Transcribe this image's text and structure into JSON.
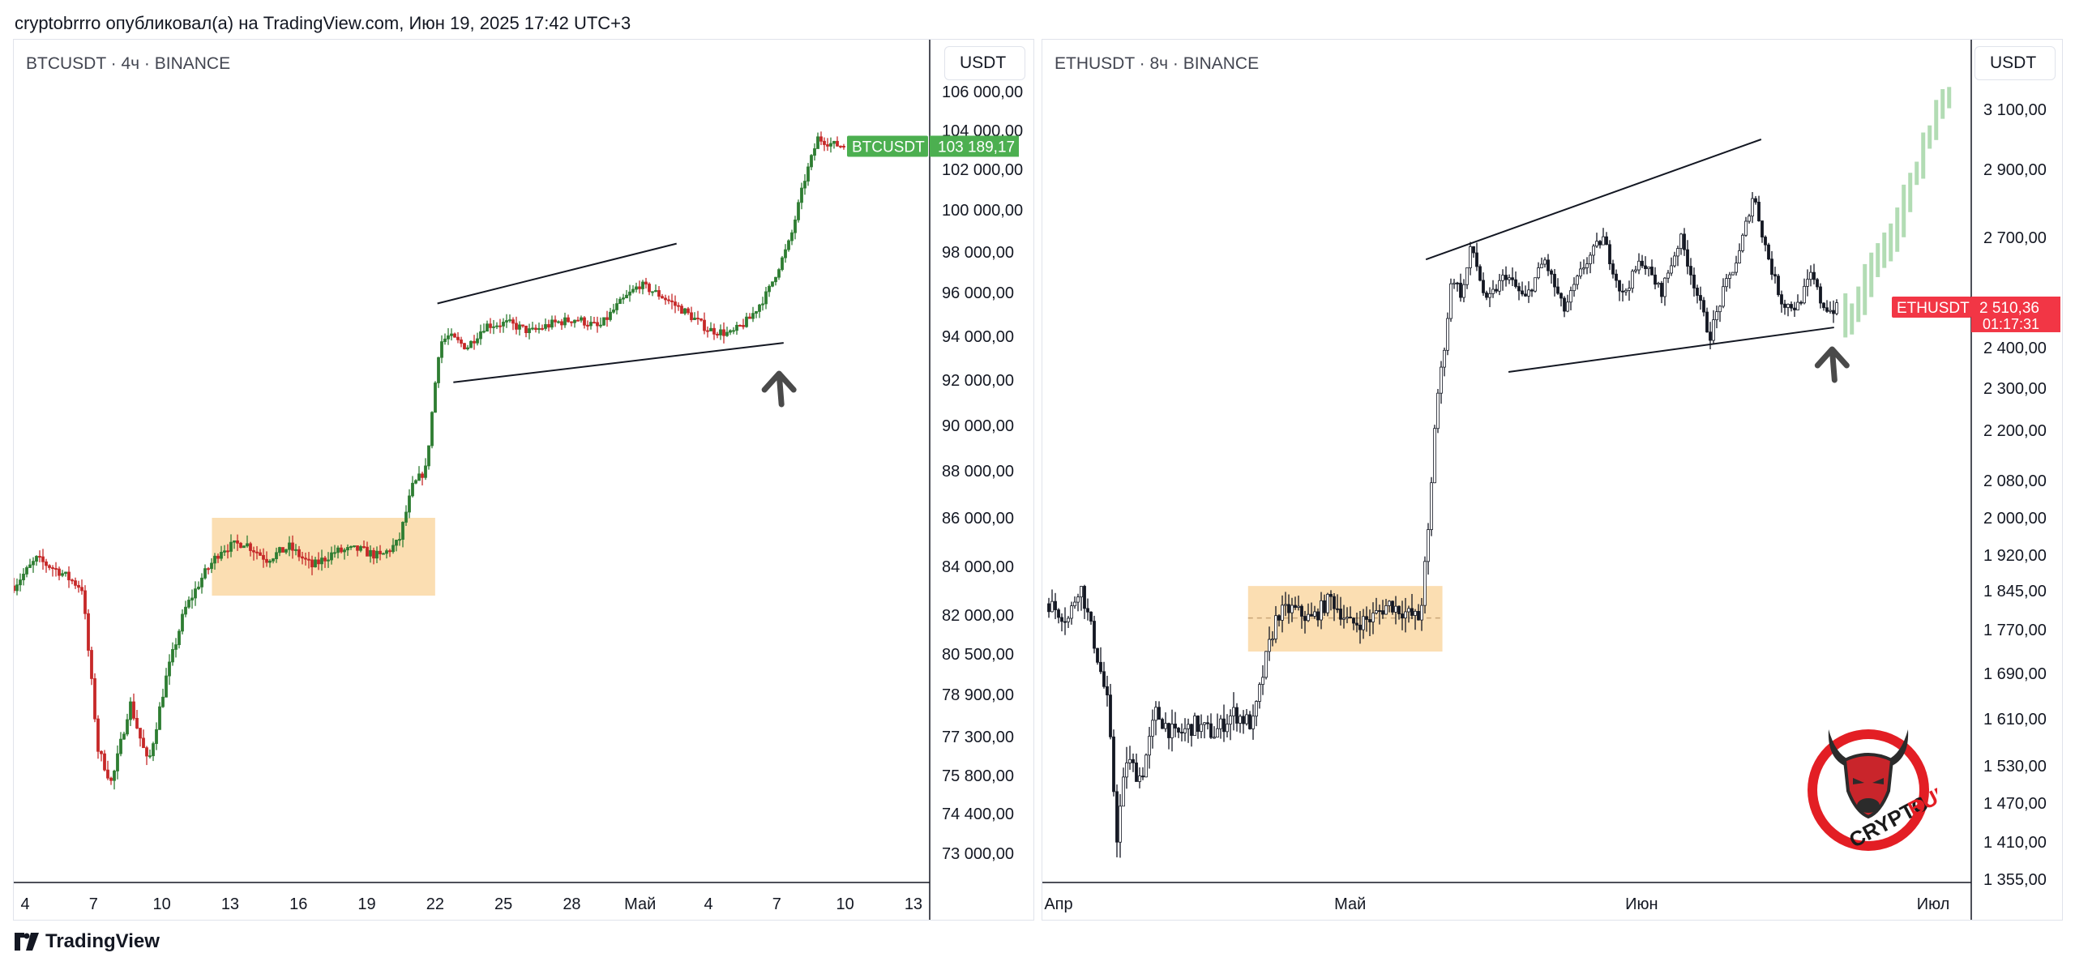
{
  "header": {
    "text": "cryptobrrro опубликовал(а) на TradingView.com, Июн 19, 2025 17:42 UTC+3"
  },
  "footer": {
    "brand": "TradingView"
  },
  "logo": {
    "line1": "CRYPTO",
    "line2": "BULL",
    "color": "#e31e24"
  },
  "colors": {
    "up": "#26a69a",
    "btc_candle_up": "#2e7d32",
    "btc_candle_down": "#c62828",
    "range_box": "#fbdcae",
    "btc_label": "#4caf50",
    "eth_label": "#f23645",
    "projection": "#a5d6a7"
  },
  "chart_data": [
    {
      "type": "candlestick",
      "title": "BTCUSDT · 4ч · BINANCE",
      "currency_button": "USDT",
      "y_ticks": [
        "106 000,00",
        "104 000,00",
        "102 000,00",
        "100 000,00",
        "98 000,00",
        "96 000,00",
        "94 000,00",
        "92 000,00",
        "90 000,00",
        "88 000,00",
        "86 000,00",
        "84 000,00",
        "82 000,00",
        "80 500,00",
        "78 900,00",
        "77 300,00",
        "75 800,00",
        "74 400,00",
        "73 000,00"
      ],
      "y_tick_values": [
        106000,
        104000,
        102000,
        100000,
        98000,
        96000,
        94000,
        92000,
        90000,
        88000,
        86000,
        84000,
        82000,
        80500,
        78900,
        77300,
        75800,
        74400,
        73000
      ],
      "x_ticks": [
        "4",
        "7",
        "10",
        "13",
        "16",
        "19",
        "22",
        "25",
        "28",
        "Май",
        "4",
        "7",
        "10",
        "13"
      ],
      "x_range_days": [
        3.5,
        43.5
      ],
      "x_tick_days": [
        4,
        7,
        10,
        13,
        16,
        19,
        22,
        25,
        28,
        31,
        34,
        37,
        40,
        43
      ],
      "last_price": {
        "symbol": "BTCUSDT",
        "value": "103 189,17",
        "price": 103189.17
      },
      "path": [
        [
          3.5,
          83200
        ],
        [
          4.5,
          84300
        ],
        [
          5.5,
          83800
        ],
        [
          6.5,
          83100
        ],
        [
          7.2,
          76800
        ],
        [
          7.8,
          75500
        ],
        [
          8.6,
          78600
        ],
        [
          9.4,
          76200
        ],
        [
          10.2,
          79600
        ],
        [
          11.0,
          82200
        ],
        [
          11.8,
          83600
        ],
        [
          12.6,
          84700
        ],
        [
          13.6,
          85000
        ],
        [
          14.6,
          84300
        ],
        [
          15.6,
          84800
        ],
        [
          16.6,
          84000
        ],
        [
          17.6,
          84600
        ],
        [
          18.6,
          84700
        ],
        [
          19.6,
          84400
        ],
        [
          20.4,
          85000
        ],
        [
          21.0,
          87300
        ],
        [
          21.6,
          88100
        ],
        [
          22.2,
          93700
        ],
        [
          22.6,
          94000
        ],
        [
          23.4,
          93500
        ],
        [
          24.2,
          94500
        ],
        [
          25.2,
          94600
        ],
        [
          26.2,
          94200
        ],
        [
          27.2,
          94600
        ],
        [
          28.2,
          94800
        ],
        [
          29.2,
          94400
        ],
        [
          30.0,
          95400
        ],
        [
          31.0,
          96400
        ],
        [
          32.0,
          95800
        ],
        [
          33.0,
          95100
        ],
        [
          34.0,
          94300
        ],
        [
          35.0,
          94100
        ],
        [
          35.8,
          94800
        ],
        [
          36.6,
          96000
        ],
        [
          37.6,
          98600
        ],
        [
          38.2,
          101400
        ],
        [
          38.8,
          103600
        ],
        [
          39.4,
          103300
        ],
        [
          40.0,
          103190
        ]
      ],
      "range_box": {
        "x0": 12.2,
        "x1": 22.0,
        "y0": 82800,
        "y1": 86000
      },
      "wedge_upper": [
        [
          22.1,
          95500
        ],
        [
          32.6,
          98400
        ]
      ],
      "wedge_lower": [
        [
          22.8,
          91900
        ],
        [
          37.3,
          93700
        ]
      ],
      "arrow": {
        "x": 37.1,
        "y": 92000
      }
    },
    {
      "type": "candlestick",
      "title": "ETHUSDT · 8ч · BINANCE",
      "currency_button": "USDT",
      "y_ticks": [
        "3 100,00",
        "2 900,00",
        "2 700,00",
        "2 400,00",
        "2 300,00",
        "2 200,00",
        "2 080,00",
        "2 000,00",
        "1 920,00",
        "1 845,00",
        "1 770,00",
        "1 690,00",
        "1 610,00",
        "1 530,00",
        "1 470,00",
        "1 410,00",
        "1 355,00"
      ],
      "y_tick_values": [
        3100,
        2900,
        2700,
        2400,
        2300,
        2200,
        2080,
        2000,
        1920,
        1845,
        1770,
        1690,
        1610,
        1530,
        1470,
        1410,
        1355
      ],
      "x_ticks": [
        "Апр",
        "Май",
        "Июн",
        "Июл"
      ],
      "x_range_days": [
        0,
        94
      ],
      "x_tick_days": [
        1,
        31,
        61,
        91
      ],
      "last_price": {
        "symbol": "ETHUSDT",
        "value": "2 510,36",
        "countdown": "01:17:31",
        "price": 2510.36
      },
      "path": [
        [
          0,
          1820
        ],
        [
          2.0,
          1790
        ],
        [
          3.2,
          1860
        ],
        [
          4.5,
          1760
        ],
        [
          6.0,
          1640
        ],
        [
          7.0,
          1420
        ],
        [
          8.0,
          1540
        ],
        [
          9.5,
          1510
        ],
        [
          11.0,
          1620
        ],
        [
          13.0,
          1580
        ],
        [
          15.0,
          1600
        ],
        [
          17.0,
          1585
        ],
        [
          19.0,
          1620
        ],
        [
          21.0,
          1600
        ],
        [
          22.4,
          1720
        ],
        [
          23.5,
          1800
        ],
        [
          25.0,
          1810
        ],
        [
          27.0,
          1790
        ],
        [
          29.0,
          1830
        ],
        [
          31.0,
          1780
        ],
        [
          33.0,
          1790
        ],
        [
          35.0,
          1820
        ],
        [
          37.0,
          1800
        ],
        [
          38.2,
          1790
        ],
        [
          39.2,
          2000
        ],
        [
          39.8,
          2250
        ],
        [
          40.6,
          2380
        ],
        [
          41.5,
          2600
        ],
        [
          42.5,
          2540
        ],
        [
          43.5,
          2680
        ],
        [
          45.0,
          2520
        ],
        [
          47.0,
          2600
        ],
        [
          49.0,
          2530
        ],
        [
          51.0,
          2640
        ],
        [
          53.0,
          2500
        ],
        [
          55.0,
          2620
        ],
        [
          57.0,
          2700
        ],
        [
          59.0,
          2540
        ],
        [
          61.0,
          2640
        ],
        [
          63.0,
          2550
        ],
        [
          65.0,
          2700
        ],
        [
          67.0,
          2520
        ],
        [
          68.0,
          2430
        ],
        [
          69.5,
          2560
        ],
        [
          71.0,
          2650
        ],
        [
          72.5,
          2830
        ],
        [
          73.5,
          2700
        ],
        [
          74.5,
          2600
        ],
        [
          75.5,
          2520
        ],
        [
          77.0,
          2510
        ],
        [
          78.5,
          2600
        ],
        [
          79.5,
          2520
        ],
        [
          80.5,
          2500
        ],
        [
          81.3,
          2510
        ]
      ],
      "projection": [
        [
          81.3,
          2510
        ],
        [
          82.5,
          2470
        ],
        [
          84.0,
          2560
        ],
        [
          85.5,
          2650
        ],
        [
          87.0,
          2700
        ],
        [
          88.5,
          2820
        ],
        [
          90.0,
          2950
        ],
        [
          91.0,
          3040
        ],
        [
          92.0,
          3120
        ],
        [
          93.0,
          3150
        ]
      ],
      "range_box": {
        "x0": 20.5,
        "x1": 40.5,
        "y0": 1730,
        "y1": 1855
      },
      "wedge_upper": [
        [
          38.8,
          2640
        ],
        [
          73.3,
          3000
        ]
      ],
      "wedge_lower": [
        [
          47.3,
          2340
        ],
        [
          80.8,
          2455
        ]
      ],
      "arrow": {
        "x": 80.6,
        "y": 2380
      }
    }
  ]
}
